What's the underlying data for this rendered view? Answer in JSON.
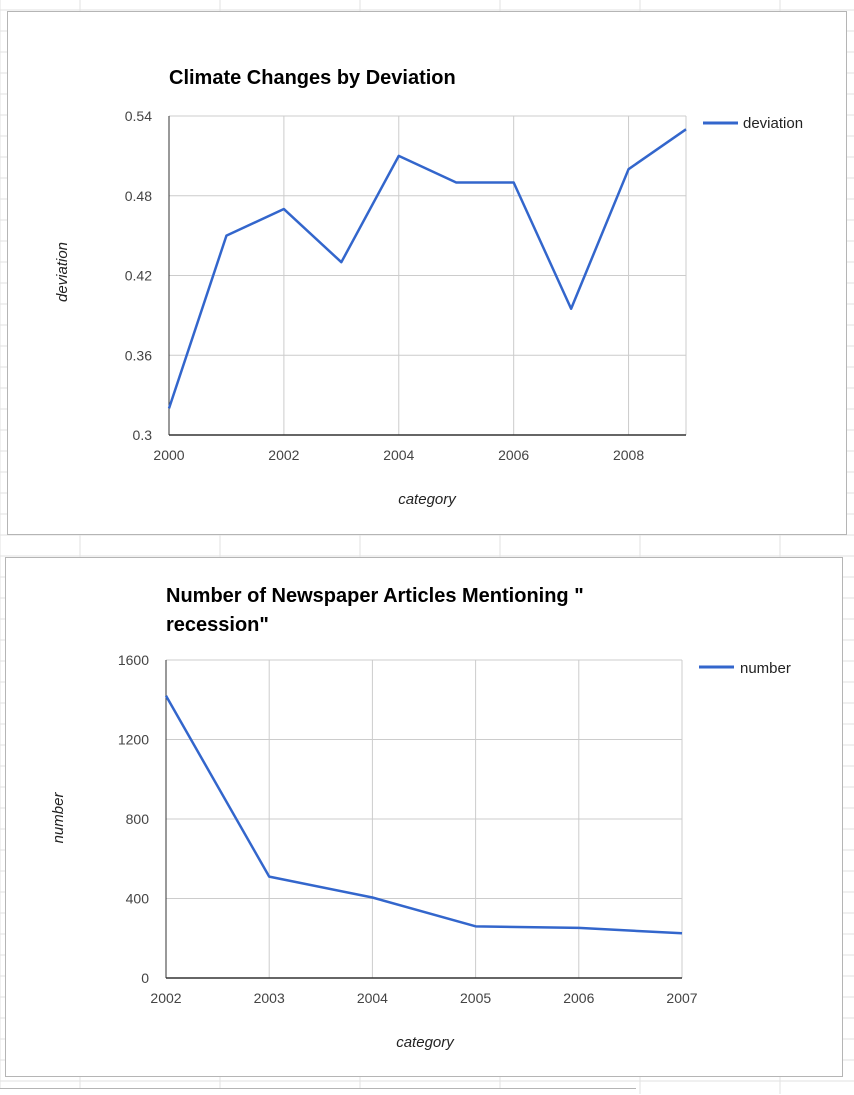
{
  "colors": {
    "series": "#3366cc",
    "grid": "#cccccc",
    "axis": "#333333",
    "sheet_grid": "#e2e2e2"
  },
  "chart_data": [
    {
      "type": "line",
      "title": "Climate Changes by Deviation",
      "xlabel": "category",
      "ylabel": "deviation",
      "x": [
        2000,
        2001,
        2002,
        2003,
        2004,
        2005,
        2006,
        2007,
        2008,
        2009
      ],
      "series": [
        {
          "name": "deviation",
          "values": [
            0.32,
            0.45,
            0.47,
            0.43,
            0.51,
            0.49,
            0.49,
            0.395,
            0.5,
            0.53
          ]
        }
      ],
      "xlim": [
        2000,
        2009
      ],
      "ylim": [
        0.3,
        0.54
      ],
      "x_ticks": [
        2000,
        2002,
        2004,
        2006,
        2008
      ],
      "x_tick_labels": [
        "2000",
        "2002",
        "2004",
        "2006",
        "2008"
      ],
      "y_ticks": [
        0.3,
        0.36,
        0.42,
        0.48,
        0.54
      ],
      "y_tick_labels": [
        "0.3",
        "0.36",
        "0.42",
        "0.48",
        "0.54"
      ],
      "grid": true,
      "legend": "right"
    },
    {
      "type": "line",
      "title": "Number of Newspaper Articles Mentioning \" recession\"",
      "title_lines": [
        "Number of Newspaper Articles Mentioning \"",
        "recession\""
      ],
      "xlabel": "category",
      "ylabel": "number",
      "x": [
        2002,
        2003,
        2004,
        2005,
        2006,
        2007
      ],
      "series": [
        {
          "name": "number",
          "values": [
            1420,
            510,
            405,
            260,
            252,
            225
          ]
        }
      ],
      "xlim": [
        2002,
        2007
      ],
      "ylim": [
        0,
        1600
      ],
      "x_ticks": [
        2002,
        2003,
        2004,
        2005,
        2006,
        2007
      ],
      "x_tick_labels": [
        "2002",
        "2003",
        "2004",
        "2005",
        "2006",
        "2007"
      ],
      "y_ticks": [
        0,
        400,
        800,
        1200,
        1600
      ],
      "y_tick_labels": [
        "0",
        "400",
        "800",
        "1200",
        "1600"
      ],
      "grid": true,
      "legend": "right"
    }
  ]
}
